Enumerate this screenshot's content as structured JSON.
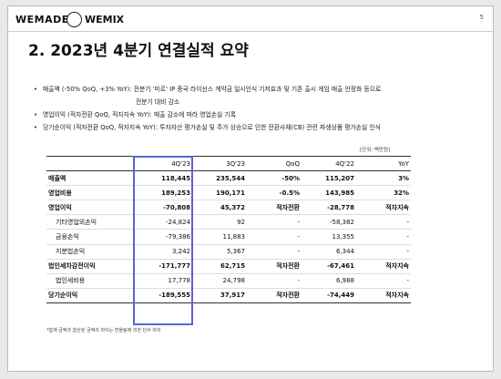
{
  "header": {
    "logo_left": "WEMADE",
    "logo_right": "WEMIX",
    "page_number": "5"
  },
  "title": "2. 2023년 4분기 연결실적 요약",
  "bullets": [
    {
      "lines": [
        "매출액 (-50% QoQ, +3% YoY): 전분기 '미르' IP 중국 라이선스 계약금 일시인식 기저효과 및 기존 출시 게임 매출 안정화 등으로",
        "전분기 대비 감소"
      ]
    },
    {
      "lines": [
        "영업이익 (적자전환 QoQ, 적자지속 YoY): 매출 감소에 따라 영업손실 기록"
      ]
    },
    {
      "lines": [
        "당기순이익 (적자전환 QoQ, 적자지속 YoY): 투자자산 평가손실 및 주가 상승으로 인한 전환사채(CB) 관련 파생상품 평가손실 인식"
      ]
    }
  ],
  "table": {
    "unit": "[단위: 백만원]",
    "columns": [
      "4Q'23",
      "3Q'23",
      "QoQ",
      "4Q'22",
      "YoY"
    ],
    "rows": [
      [
        "매출액",
        "118,445",
        "235,544",
        "-50%",
        "115,207",
        "3%"
      ],
      [
        "영업비용",
        "189,253",
        "190,171",
        "-0.5%",
        "143,985",
        "32%"
      ],
      [
        "영업이익",
        "-70,808",
        "45,372",
        "적자전환",
        "-28,778",
        "적자지속"
      ],
      [
        "기타영업외손익",
        "-24,824",
        "92",
        "-",
        "-58,382",
        "-"
      ],
      [
        "금융손익",
        "-79,386",
        "11,883",
        "-",
        "13,355",
        "-"
      ],
      [
        "지분법손익",
        "3,242",
        "5,367",
        "-",
        "6,344",
        "-"
      ],
      [
        "법인세차감전이익",
        "-171,777",
        "62,715",
        "적자전환",
        "-67,461",
        "적자지속"
      ],
      [
        "법인세비용",
        "17,778",
        "24,798",
        "-",
        "6,988",
        "-"
      ],
      [
        "당기순이익",
        "-189,555",
        "37,917",
        "적자전환",
        "-74,449",
        "적자지속"
      ]
    ],
    "footnote": "*합계 금액과 합산된 금액의 차이는 반올림에 의한 단수 차이"
  }
}
